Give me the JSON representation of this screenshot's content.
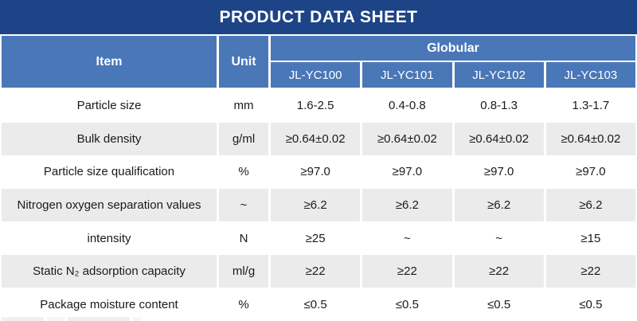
{
  "title": "PRODUCT DATA SHEET",
  "colors": {
    "title_bar_navy": "#1d4486",
    "header_blue": "#4a77b8",
    "stripe_gray": "#ebebeb",
    "header_text": "#ffffff",
    "body_text": "#1a1a1a"
  },
  "table": {
    "item_header": "Item",
    "unit_header": "Unit",
    "group_header": "Globular",
    "models": [
      "JL-YC100",
      "JL-YC101",
      "JL-YC102",
      "JL-YC103"
    ],
    "rows": [
      {
        "item": "Particle size",
        "unit": "mm",
        "values": [
          "1.6-2.5",
          "0.4-0.8",
          "0.8-1.3",
          "1.3-1.7"
        ]
      },
      {
        "item": "Bulk density",
        "unit": "g/ml",
        "values": [
          "≥0.64±0.02",
          "≥0.64±0.02",
          "≥0.64±0.02",
          "≥0.64±0.02"
        ]
      },
      {
        "item": "Particle size qualification",
        "unit": "%",
        "values": [
          "≥97.0",
          "≥97.0",
          "≥97.0",
          "≥97.0"
        ]
      },
      {
        "item": "Nitrogen oxygen separation values",
        "unit": "~",
        "values": [
          "≥6.2",
          "≥6.2",
          "≥6.2",
          "≥6.2"
        ]
      },
      {
        "item": "intensity",
        "unit": "N",
        "values": [
          "≥25",
          "~",
          "~",
          "≥15"
        ]
      },
      {
        "item": "Static N₂ adsorption capacity",
        "unit": "ml/g",
        "values": [
          "≥22",
          "≥22",
          "≥22",
          "≥22"
        ]
      },
      {
        "item": "Package moisture content",
        "unit": "%",
        "values": [
          "≤0.5",
          "≤0.5",
          "≤0.5",
          "≤0.5"
        ]
      }
    ]
  }
}
